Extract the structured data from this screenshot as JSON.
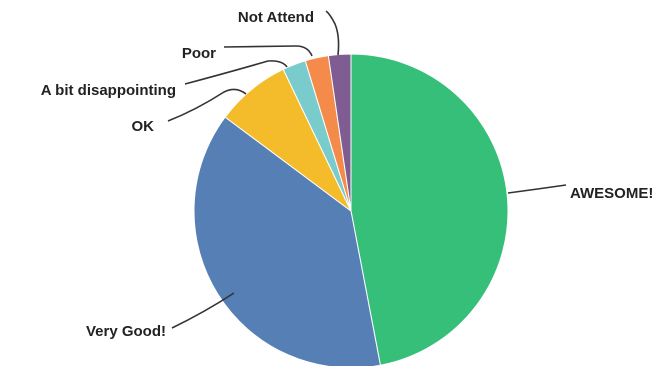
{
  "chart_data": {
    "type": "pie",
    "start": "12 o'clock",
    "direction": "clockwise",
    "legend": "none",
    "slices": [
      {
        "label": "AWESOME!",
        "value": 47.0,
        "color": "#36bf78"
      },
      {
        "label": "Very Good!",
        "value": 38.2,
        "color": "#557fb5"
      },
      {
        "label": "OK",
        "value": 7.7,
        "color": "#f4bb2b"
      },
      {
        "label": "A bit disappointing",
        "value": 2.4,
        "color": "#79cccb"
      },
      {
        "label": "Poor",
        "value": 2.4,
        "color": "#f58b4b"
      },
      {
        "label": "Not Attend",
        "value": 2.3,
        "color": "#7f5c92"
      }
    ]
  }
}
